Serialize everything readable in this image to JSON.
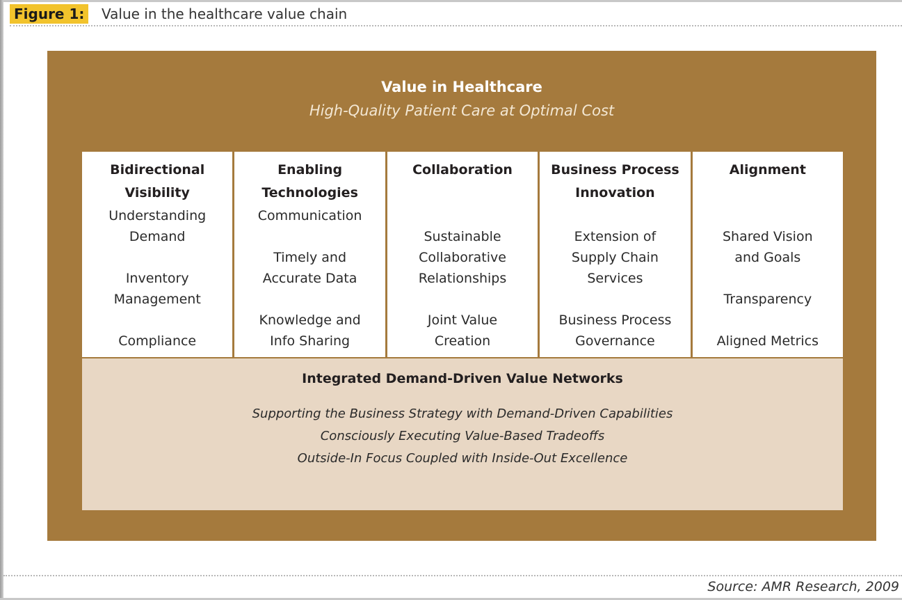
{
  "figure": {
    "label": "Figure 1:",
    "title": "Value in the healthcare value chain",
    "source": "Source: AMR Research, 2009"
  },
  "header": {
    "title": "Value in Healthcare",
    "subtitle": "High-Quality Patient Care at Optimal Cost"
  },
  "columns": [
    {
      "heading": [
        "Bidirectional",
        "Visibility"
      ],
      "items": [
        [
          "Understanding",
          "Demand"
        ],
        [
          "Inventory",
          "Management"
        ],
        [
          "Compliance"
        ]
      ],
      "gaps": [
        0,
        1,
        1
      ]
    },
    {
      "heading": [
        "Enabling",
        "Technologies"
      ],
      "items": [
        [
          "Communication"
        ],
        [
          "Timely and",
          "Accurate Data"
        ],
        [
          "Knowledge and",
          "Info Sharing"
        ]
      ],
      "gaps": [
        0,
        1,
        1
      ]
    },
    {
      "heading": [
        "Collaboration"
      ],
      "items": [
        [
          "Sustainable",
          "Collaborative",
          "Relationships"
        ],
        [
          "Joint Value",
          "Creation"
        ]
      ],
      "gaps": [
        0,
        1
      ]
    },
    {
      "heading": [
        "Business Process",
        "Innovation"
      ],
      "items": [
        [
          "Extension of",
          "Supply Chain",
          "Services"
        ],
        [
          "Business Process",
          "Governance"
        ]
      ],
      "gaps": [
        0,
        1
      ]
    },
    {
      "heading": [
        "Alignment"
      ],
      "items": [
        [
          "Shared Vision",
          "and Goals"
        ],
        [
          "Transparency"
        ],
        [
          "Aligned Metrics"
        ]
      ],
      "gaps": [
        0,
        1,
        1
      ]
    }
  ],
  "foundation": {
    "title": "Integrated Demand-Driven Value Networks",
    "lines": [
      "Supporting the Business Strategy with Demand-Driven Capabilities",
      "Consciously Executing Value-Based Tradeoffs",
      "Outside-In Focus Coupled with Inside-Out Excellence"
    ]
  },
  "colors": {
    "brown": "#a57a3d",
    "beige": "#e8d7c4",
    "label": "#f2c32c"
  }
}
